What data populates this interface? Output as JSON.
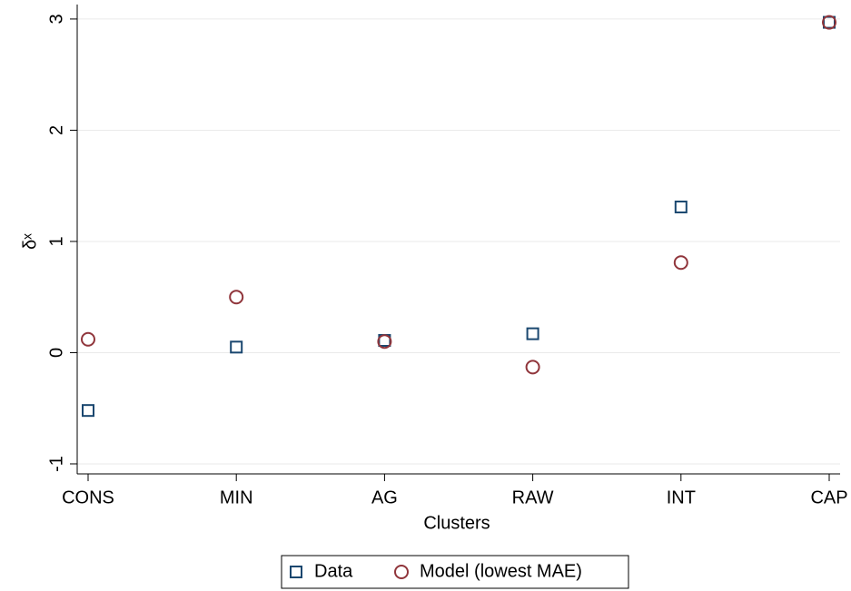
{
  "chart_data": {
    "type": "scatter",
    "x_label": "Clusters",
    "y_label": "δˣ",
    "categories": [
      "CONS",
      "MIN",
      "AG",
      "RAW",
      "INT",
      "CAP"
    ],
    "series": [
      {
        "name": "Data",
        "color": "#1a476f",
        "marker": "square",
        "values": [
          -0.52,
          0.05,
          0.11,
          0.17,
          1.31,
          2.97
        ]
      },
      {
        "name": "Model (lowest MAE)",
        "color": "#90353b",
        "marker": "circle",
        "values": [
          0.12,
          0.5,
          0.1,
          -0.13,
          0.81,
          2.97
        ]
      }
    ],
    "ylim": [
      -1.09,
      3.13
    ],
    "yticks": [
      -1,
      0,
      1,
      2,
      3
    ],
    "grid": true,
    "legend": "bottom"
  }
}
